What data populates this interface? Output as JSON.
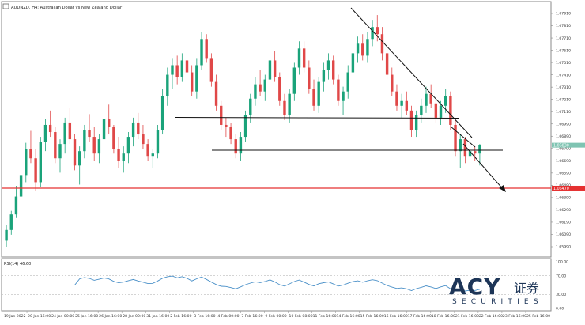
{
  "header": {
    "icon": "chart-window-icon",
    "title": "AUDNZD, H4: Australian Dollar vs New Zealand Dollar"
  },
  "indicator": {
    "label": "RSI(14) 46.60",
    "scale_labels": [
      "100.00",
      "70.00",
      "30.00",
      "0.00"
    ],
    "level_values": [
      100,
      70,
      30,
      0
    ],
    "color": "#4a90c8"
  },
  "watermark": {
    "brand": "ACY",
    "chinese": "证券",
    "sub": "SECURITIES"
  },
  "price_axis": {
    "labels": [
      "1.07910",
      "1.07810",
      "1.07710",
      "1.07610",
      "1.07510",
      "1.07410",
      "1.07310",
      "1.07210",
      "1.07110",
      "1.06990",
      "1.06890",
      "1.06790",
      "1.06690",
      "1.06590",
      "1.06490",
      "1.06390",
      "1.06290",
      "1.06190",
      "1.06090",
      "1.05990"
    ],
    "current_price_tag": "1.06830",
    "red_line_tag": "1.06470"
  },
  "time_axis": {
    "labels": [
      "19 Jan 2022",
      "20 Jan 16:00",
      "24 Jan 00:00",
      "25 Jan 16:00",
      "26 Jan 16:00",
      "28 Jan 00:00",
      "31 Jan 16:00",
      "2 Feb 16:00",
      "3 Feb 16:00",
      "4 Feb 00:00",
      "7 Feb 16:00",
      "9 Feb 00:00",
      "10 Feb 08:00",
      "11 Feb 16:00",
      "14 Feb 16:00",
      "15 Feb 16:00",
      "16 Feb 16:00",
      "17 Feb 16:00",
      "18 Feb 16:00",
      "21 Feb 16:00",
      "22 Feb 16:00",
      "23 Feb 16:00",
      "25 Feb 16:00"
    ]
  },
  "colors": {
    "bull": "#1aa37a",
    "bear": "#e04848",
    "support_line": "#e53030",
    "current_price_line": "#7fc4b2",
    "trend_line": "#111111"
  },
  "chart_data": {
    "type": "candlestick",
    "title": "AUDNZD, H4: Australian Dollar vs New Zealand Dollar",
    "ylim": [
      1.0594,
      1.0798
    ],
    "candles": [
      [
        1.0603,
        1.0616,
        1.0598,
        1.0612
      ],
      [
        1.0612,
        1.0628,
        1.0608,
        1.0625
      ],
      [
        1.0625,
        1.0649,
        1.0622,
        1.064
      ],
      [
        1.064,
        1.0663,
        1.0632,
        1.0658
      ],
      [
        1.0658,
        1.0685,
        1.0652,
        1.068
      ],
      [
        1.068,
        1.0695,
        1.0668,
        1.0672
      ],
      [
        1.0672,
        1.068,
        1.0645,
        1.0652
      ],
      [
        1.0652,
        1.069,
        1.0648,
        1.0686
      ],
      [
        1.0686,
        1.0705,
        1.0678,
        1.07
      ],
      [
        1.07,
        1.0712,
        1.069,
        1.0694
      ],
      [
        1.0694,
        1.0698,
        1.0668,
        1.0672
      ],
      [
        1.0672,
        1.0688,
        1.066,
        1.0684
      ],
      [
        1.0684,
        1.0706,
        1.0676,
        1.0702
      ],
      [
        1.0702,
        1.0714,
        1.0684,
        1.0688
      ],
      [
        1.0688,
        1.0692,
        1.0662,
        1.0666
      ],
      [
        1.0666,
        1.0682,
        1.065,
        1.0678
      ],
      [
        1.0678,
        1.07,
        1.0672,
        1.0696
      ],
      [
        1.0696,
        1.0709,
        1.0686,
        1.069
      ],
      [
        1.069,
        1.0698,
        1.067,
        1.0676
      ],
      [
        1.0676,
        1.0692,
        1.0668,
        1.0688
      ],
      [
        1.0688,
        1.071,
        1.0682,
        1.0705
      ],
      [
        1.0705,
        1.0717,
        1.0692,
        1.0698
      ],
      [
        1.0698,
        1.07,
        1.0676,
        1.068
      ],
      [
        1.068,
        1.069,
        1.0664,
        1.067
      ],
      [
        1.067,
        1.0682,
        1.066,
        1.0676
      ],
      [
        1.0676,
        1.0694,
        1.0668,
        1.069
      ],
      [
        1.069,
        1.0706,
        1.0682,
        1.0702
      ],
      [
        1.0702,
        1.071,
        1.0688,
        1.0692
      ],
      [
        1.0692,
        1.07,
        1.068,
        1.0684
      ],
      [
        1.0684,
        1.0688,
        1.067,
        1.0674
      ],
      [
        1.0674,
        1.068,
        1.0664,
        1.0676
      ],
      [
        1.0676,
        1.07,
        1.0672,
        1.0696
      ],
      [
        1.0696,
        1.073,
        1.0692,
        1.0724
      ],
      [
        1.0724,
        1.0748,
        1.0716,
        1.0742
      ],
      [
        1.0742,
        1.0756,
        1.073,
        1.075
      ],
      [
        1.075,
        1.0758,
        1.0734,
        1.074
      ],
      [
        1.074,
        1.076,
        1.0736,
        1.0754
      ],
      [
        1.0754,
        1.0761,
        1.074,
        1.0744
      ],
      [
        1.0744,
        1.075,
        1.0724,
        1.0728
      ],
      [
        1.0728,
        1.0756,
        1.0722,
        1.075
      ],
      [
        1.075,
        1.0778,
        1.0746,
        1.0772
      ],
      [
        1.0772,
        1.0776,
        1.0752,
        1.0756
      ],
      [
        1.0756,
        1.076,
        1.0732,
        1.0736
      ],
      [
        1.0736,
        1.0742,
        1.0712,
        1.0716
      ],
      [
        1.0716,
        1.072,
        1.0696,
        1.07
      ],
      [
        1.07,
        1.0706,
        1.069,
        1.0698
      ],
      [
        1.0698,
        1.0702,
        1.0684,
        1.0688
      ],
      [
        1.0688,
        1.0692,
        1.0672,
        1.0676
      ],
      [
        1.0676,
        1.0694,
        1.067,
        1.069
      ],
      [
        1.069,
        1.0712,
        1.0686,
        1.0708
      ],
      [
        1.0708,
        1.0726,
        1.0702,
        1.0722
      ],
      [
        1.0722,
        1.074,
        1.0716,
        1.0734
      ],
      [
        1.0734,
        1.0746,
        1.0724,
        1.0728
      ],
      [
        1.0728,
        1.0742,
        1.072,
        1.0738
      ],
      [
        1.0738,
        1.076,
        1.073,
        1.0754
      ],
      [
        1.0754,
        1.0762,
        1.0736,
        1.074
      ],
      [
        1.074,
        1.0744,
        1.0716,
        1.072
      ],
      [
        1.072,
        1.0726,
        1.0704,
        1.0708
      ],
      [
        1.0708,
        1.073,
        1.0702,
        1.0726
      ],
      [
        1.0726,
        1.0752,
        1.072,
        1.0748
      ],
      [
        1.0748,
        1.077,
        1.0742,
        1.0764
      ],
      [
        1.0764,
        1.077,
        1.0744,
        1.0748
      ],
      [
        1.0748,
        1.0754,
        1.0726,
        1.073
      ],
      [
        1.073,
        1.0738,
        1.0712,
        1.0716
      ],
      [
        1.0716,
        1.074,
        1.071,
        1.0736
      ],
      [
        1.0736,
        1.0752,
        1.0728,
        1.0746
      ],
      [
        1.0746,
        1.076,
        1.0738,
        1.0754
      ],
      [
        1.0754,
        1.0758,
        1.0734,
        1.0738
      ],
      [
        1.0738,
        1.0742,
        1.0716,
        1.072
      ],
      [
        1.072,
        1.0732,
        1.0708,
        1.0728
      ],
      [
        1.0728,
        1.075,
        1.0722,
        1.0744
      ],
      [
        1.0744,
        1.0766,
        1.0738,
        1.076
      ],
      [
        1.076,
        1.0774,
        1.0752,
        1.0768
      ],
      [
        1.0768,
        1.0776,
        1.0754,
        1.0758
      ],
      [
        1.0758,
        1.0778,
        1.0752,
        1.0772
      ],
      [
        1.0772,
        1.0788,
        1.0766,
        1.0782
      ],
      [
        1.0782,
        1.0792,
        1.077,
        1.0776
      ],
      [
        1.0776,
        1.0782,
        1.0754,
        1.076
      ],
      [
        1.076,
        1.0764,
        1.0738,
        1.0742
      ],
      [
        1.0742,
        1.0748,
        1.0724,
        1.0728
      ],
      [
        1.0728,
        1.0734,
        1.0712,
        1.0716
      ],
      [
        1.0716,
        1.0726,
        1.0706,
        1.072
      ],
      [
        1.072,
        1.0728,
        1.0708,
        1.0712
      ],
      [
        1.0712,
        1.0716,
        1.069,
        1.0696
      ],
      [
        1.0696,
        1.0712,
        1.069,
        1.0708
      ],
      [
        1.0708,
        1.0722,
        1.0702,
        1.0716
      ],
      [
        1.0716,
        1.0732,
        1.071,
        1.0726
      ],
      [
        1.0726,
        1.0734,
        1.0714,
        1.0718
      ],
      [
        1.0718,
        1.0724,
        1.0702,
        1.0706
      ],
      [
        1.0706,
        1.072,
        1.07,
        1.0716
      ],
      [
        1.0716,
        1.073,
        1.071,
        1.0724
      ],
      [
        1.0724,
        1.0728,
        1.0696,
        1.07
      ],
      [
        1.07,
        1.0704,
        1.0674,
        1.0678
      ],
      [
        1.0678,
        1.0692,
        1.0664,
        1.0688
      ],
      [
        1.0688,
        1.069,
        1.0668,
        1.0674
      ],
      [
        1.0674,
        1.0682,
        1.0668,
        1.0678
      ],
      [
        1.0678,
        1.0682,
        1.067,
        1.0676
      ],
      [
        1.0676,
        1.0684,
        1.0666,
        1.0683
      ]
    ],
    "support_level": 1.0647,
    "current_price": 1.0683
  }
}
